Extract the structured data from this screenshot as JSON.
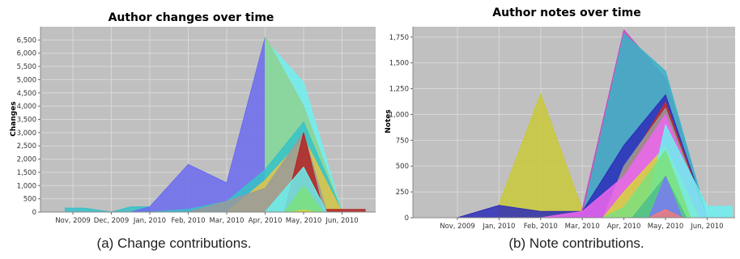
{
  "chart_data": [
    {
      "type": "area",
      "title": "Author changes over time",
      "xlabel": "",
      "ylabel": "Changes",
      "caption": "(a) Change contributions.",
      "categories": [
        "Nov, 2009",
        "Dec, 2009",
        "Jan, 2010",
        "Feb, 2010",
        "Mar, 2010",
        "Apr, 2010",
        "May, 2010",
        "Jun, 2010"
      ],
      "ylim": [
        0,
        7000
      ],
      "yticks": [
        0,
        500,
        1000,
        1500,
        2000,
        2500,
        3000,
        3500,
        4000,
        4500,
        5000,
        5500,
        6000,
        6500
      ],
      "ytick_labels": [
        "0",
        "500",
        "1,000",
        "1,500",
        "2,000",
        "2,500",
        "3,000",
        "3,500",
        "4,000",
        "4,500",
        "5,000",
        "5,500",
        "6,000",
        "6,500"
      ],
      "grid": true,
      "series": [
        {
          "color": "#36c2c8",
          "x": [
            -0.2,
            0.3,
            1.0,
            1.5,
            2.0
          ],
          "values": [
            150,
            150,
            0,
            200,
            200
          ]
        },
        {
          "color": "#6b6bf0",
          "x": [
            1.5,
            2.0,
            3.0,
            4.0,
            5.0,
            6.0,
            7.0
          ],
          "values": [
            0,
            200,
            1800,
            1100,
            6600,
            4000,
            0
          ]
        },
        {
          "color": "#70f0f0",
          "x": [
            5.0,
            6.0,
            7.0
          ],
          "values": [
            6500,
            4900,
            0
          ]
        },
        {
          "color": "#8fd48f",
          "x": [
            5.0,
            5.05,
            6.0,
            7.0
          ],
          "values": [
            6600,
            6500,
            4000,
            0
          ]
        },
        {
          "color": "#36c2c8",
          "x": [
            2.0,
            3.0,
            4.0,
            5.0,
            6.0,
            7.0
          ],
          "values": [
            0,
            100,
            400,
            1600,
            3400,
            0
          ]
        },
        {
          "color": "#e6c447",
          "x": [
            4.0,
            5.0,
            6.0,
            7.0
          ],
          "values": [
            0,
            1200,
            2800,
            0
          ]
        },
        {
          "color": "#9a9a9a",
          "x": [
            3.0,
            4.0,
            5.0,
            6.0,
            6.6
          ],
          "values": [
            0,
            400,
            900,
            3000,
            0
          ]
        },
        {
          "color": "#b22424",
          "x": [
            5.5,
            6.0,
            6.5,
            7.0,
            7.6
          ],
          "values": [
            0,
            3000,
            100,
            100,
            100
          ]
        },
        {
          "color": "#6cf0f0",
          "x": [
            4.0,
            5.0,
            6.0,
            6.6
          ],
          "values": [
            0,
            0,
            1700,
            0
          ]
        },
        {
          "color": "#7ce07c",
          "x": [
            5.5,
            6.0,
            6.5
          ],
          "values": [
            0,
            1000,
            0
          ]
        },
        {
          "color": "#d6d63a",
          "x": [
            5.7,
            6.0,
            6.3
          ],
          "values": [
            0,
            80,
            0
          ]
        }
      ]
    },
    {
      "type": "area",
      "title": "Author notes over time",
      "xlabel": "",
      "ylabel": "Notes",
      "caption": "(b) Note contributions.",
      "categories": [
        "Nov, 2009",
        "Jan, 2010",
        "Feb, 2010",
        "Mar, 2010",
        "Apr, 2010",
        "May, 2010",
        "Jun, 2010"
      ],
      "ylim": [
        0,
        1850
      ],
      "yticks": [
        0,
        250,
        500,
        750,
        1000,
        1250,
        1500,
        1750
      ],
      "ytick_labels": [
        "0",
        "250",
        "500",
        "750",
        "1,000",
        "1,250",
        "1,500",
        "1,750"
      ],
      "grid": true,
      "series": [
        {
          "color": "#c9c93a",
          "x": [
            1.0,
            2.0,
            3.0,
            4.0,
            5.0,
            6.0
          ],
          "values": [
            130,
            1200,
            80,
            1780,
            1320,
            0
          ]
        },
        {
          "color": "#c44cc4",
          "x": [
            3.0,
            4.0,
            5.0,
            6.0
          ],
          "values": [
            80,
            1820,
            1350,
            0
          ]
        },
        {
          "color": "#36b4c8",
          "x": [
            3.0,
            4.0,
            5.0,
            6.0
          ],
          "values": [
            0,
            1780,
            1420,
            0
          ]
        },
        {
          "color": "#2d2db8",
          "x": [
            0.0,
            1.0,
            2.0,
            3.0,
            4.0,
            5.0,
            6.0
          ],
          "values": [
            0,
            120,
            60,
            60,
            700,
            1190,
            0
          ]
        },
        {
          "color": "#c42d2d",
          "x": [
            3.5,
            4.0,
            5.0,
            6.0
          ],
          "values": [
            0,
            450,
            1120,
            0
          ]
        },
        {
          "color": "#9a9a9a",
          "x": [
            3.5,
            4.0,
            5.0,
            6.0
          ],
          "values": [
            0,
            500,
            1060,
            0
          ]
        },
        {
          "color": "#ee66ee",
          "x": [
            2.0,
            3.0,
            4.0,
            5.0,
            6.0
          ],
          "values": [
            0,
            60,
            400,
            1000,
            0
          ]
        },
        {
          "color": "#d6d63a",
          "x": [
            3.5,
            4.0,
            5.0,
            5.8
          ],
          "values": [
            0,
            250,
            690,
            0
          ]
        },
        {
          "color": "#6cf0f0",
          "x": [
            4.5,
            5.0,
            6.0,
            6.6
          ],
          "values": [
            0,
            900,
            110,
            110
          ]
        },
        {
          "color": "#7ce07c",
          "x": [
            3.5,
            4.0,
            5.0,
            5.6
          ],
          "values": [
            0,
            100,
            650,
            0
          ]
        },
        {
          "color": "#4ec08a",
          "x": [
            4.2,
            5.0,
            5.5
          ],
          "values": [
            0,
            400,
            0
          ]
        },
        {
          "color": "#7a7af0",
          "x": [
            4.6,
            5.0,
            5.4
          ],
          "values": [
            0,
            400,
            0
          ]
        },
        {
          "color": "#f07a7a",
          "x": [
            4.6,
            5.0,
            5.4
          ],
          "values": [
            0,
            80,
            0
          ]
        }
      ]
    }
  ]
}
